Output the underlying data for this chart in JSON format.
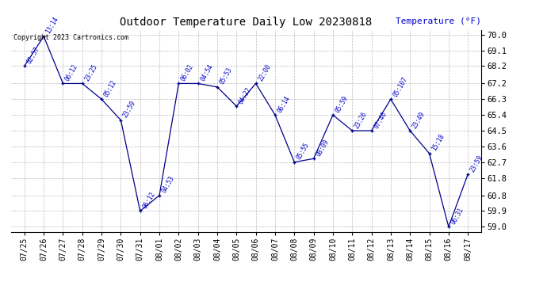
{
  "title": "Outdoor Temperature Daily Low 20230818",
  "ylabel": "Temperature (°F)",
  "copyright_text": "Copyright 2023 Cartronics.com",
  "background_color": "#ffffff",
  "plot_background_color": "#ffffff",
  "line_color": "#00008b",
  "text_color": "#0000cd",
  "grid_color": "#aaaaaa",
  "dates": [
    "07/25",
    "07/26",
    "07/27",
    "07/28",
    "07/29",
    "07/30",
    "07/31",
    "08/01",
    "08/02",
    "08/03",
    "08/04",
    "08/05",
    "08/06",
    "08/07",
    "08/08",
    "08/09",
    "08/10",
    "08/11",
    "08/12",
    "08/13",
    "08/14",
    "08/15",
    "08/16",
    "08/17"
  ],
  "times": [
    "02:57",
    "13:14",
    "06:12",
    "23:25",
    "05:12",
    "23:59",
    "06:12",
    "04:53",
    "06:02",
    "04:54",
    "05:53",
    "04:22",
    "22:00",
    "06:14",
    "05:55",
    "08:09",
    "05:59",
    "23:26",
    "07:46",
    "05:107",
    "23:49",
    "15:18",
    "06:31",
    "23:59"
  ],
  "temperatures": [
    68.2,
    69.9,
    67.2,
    67.2,
    66.3,
    65.1,
    59.9,
    60.8,
    67.2,
    67.2,
    67.0,
    65.9,
    67.2,
    65.4,
    62.7,
    62.9,
    65.4,
    64.5,
    64.5,
    66.3,
    64.5,
    63.2,
    59.0,
    62.0
  ],
  "ylim": [
    58.72,
    70.28
  ],
  "yticks": [
    59.0,
    59.9,
    60.8,
    61.8,
    62.7,
    63.6,
    64.5,
    65.4,
    66.3,
    67.2,
    68.2,
    69.1,
    70.0
  ],
  "figsize": [
    6.9,
    3.75
  ],
  "dpi": 100
}
